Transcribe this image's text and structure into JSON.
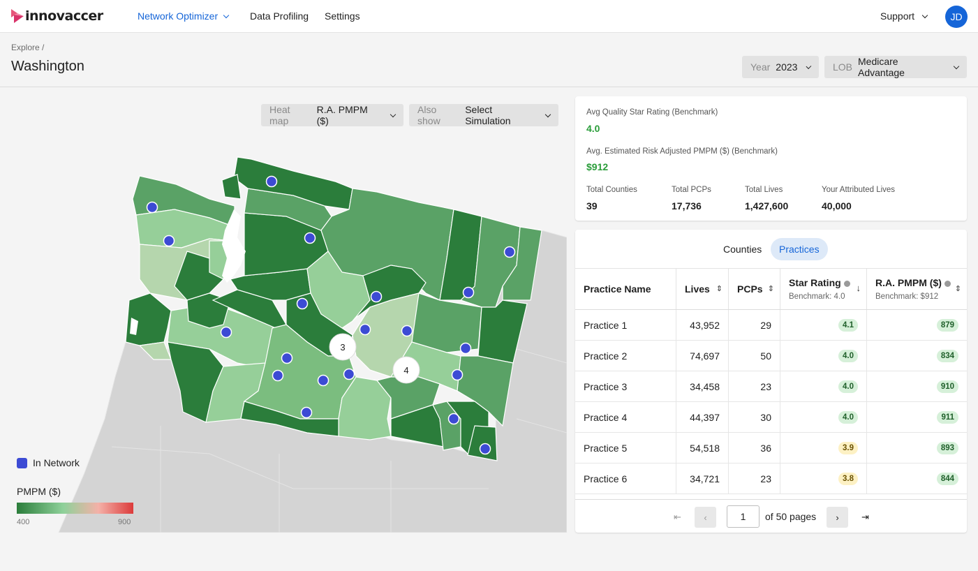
{
  "nav": {
    "logo_text": "innovacer",
    "items": [
      "Network Optimizer",
      "Data Profiling",
      "Settings"
    ],
    "support": "Support",
    "avatar_initials": "JD",
    "accent": "#1565d8"
  },
  "header": {
    "breadcrumb": "Explore /",
    "title": "Washington",
    "year_label": "Year",
    "year_value": "2023",
    "lob_label": "LOB",
    "lob_value": "Medicare Advantage"
  },
  "map": {
    "heatmap_label": "Heat map",
    "heatmap_value": "R.A. PMPM ($)",
    "also_show_label": "Also show",
    "also_show_value": "Select Simulation",
    "cluster_counts": [
      "3",
      "4"
    ],
    "legend_in_network": "In Network",
    "legend_pmpm_title": "PMPM ($)",
    "legend_min": "400",
    "legend_max": "900",
    "network_color": "#3c4bd4",
    "green_dark": "#2b7d3b",
    "green_light": "#b5d6ad"
  },
  "summary": {
    "avg_star_label": "Avg Quality Star Rating (Benchmark)",
    "avg_star_value": "4.0",
    "avg_pmpm_label": "Avg. Estimated Risk Adjusted PMPM ($) (Benchmark)",
    "avg_pmpm_value": "$912",
    "stats": [
      {
        "label": "Total Counties",
        "value": "39"
      },
      {
        "label": "Total PCPs",
        "value": "17,736"
      },
      {
        "label": "Total Lives",
        "value": "1,427,600"
      },
      {
        "label": "Your Attributed Lives",
        "value": "40,000"
      }
    ]
  },
  "table": {
    "tabs": [
      "Counties",
      "Practices"
    ],
    "headers": {
      "name": "Practice Name",
      "lives": "Lives",
      "pcps": "PCPs",
      "star": "Star Rating",
      "star_sub": "Benchmark: 4.0",
      "pmpm": "R.A. PMPM ($)",
      "pmpm_sub": "Benchmark: $912"
    },
    "rows": [
      {
        "name": "Practice 1",
        "lives": "43,952",
        "pcps": "29",
        "star": "4.1",
        "pmpm": "879"
      },
      {
        "name": "Practice 2",
        "lives": "74,697",
        "pcps": "50",
        "star": "4.0",
        "pmpm": "834"
      },
      {
        "name": "Practice 3",
        "lives": "34,458",
        "pcps": "23",
        "star": "4.0",
        "pmpm": "910"
      },
      {
        "name": "Practice 4",
        "lives": "44,397",
        "pcps": "30",
        "star": "4.0",
        "pmpm": "911"
      },
      {
        "name": "Practice 5",
        "lives": "54,518",
        "pcps": "36",
        "star": "3.9",
        "pmpm": "893"
      },
      {
        "name": "Practice 6",
        "lives": "34,721",
        "pcps": "23",
        "star": "3.8",
        "pmpm": "844"
      }
    ],
    "pager": {
      "page": "1",
      "of_text": "of 50 pages"
    }
  }
}
